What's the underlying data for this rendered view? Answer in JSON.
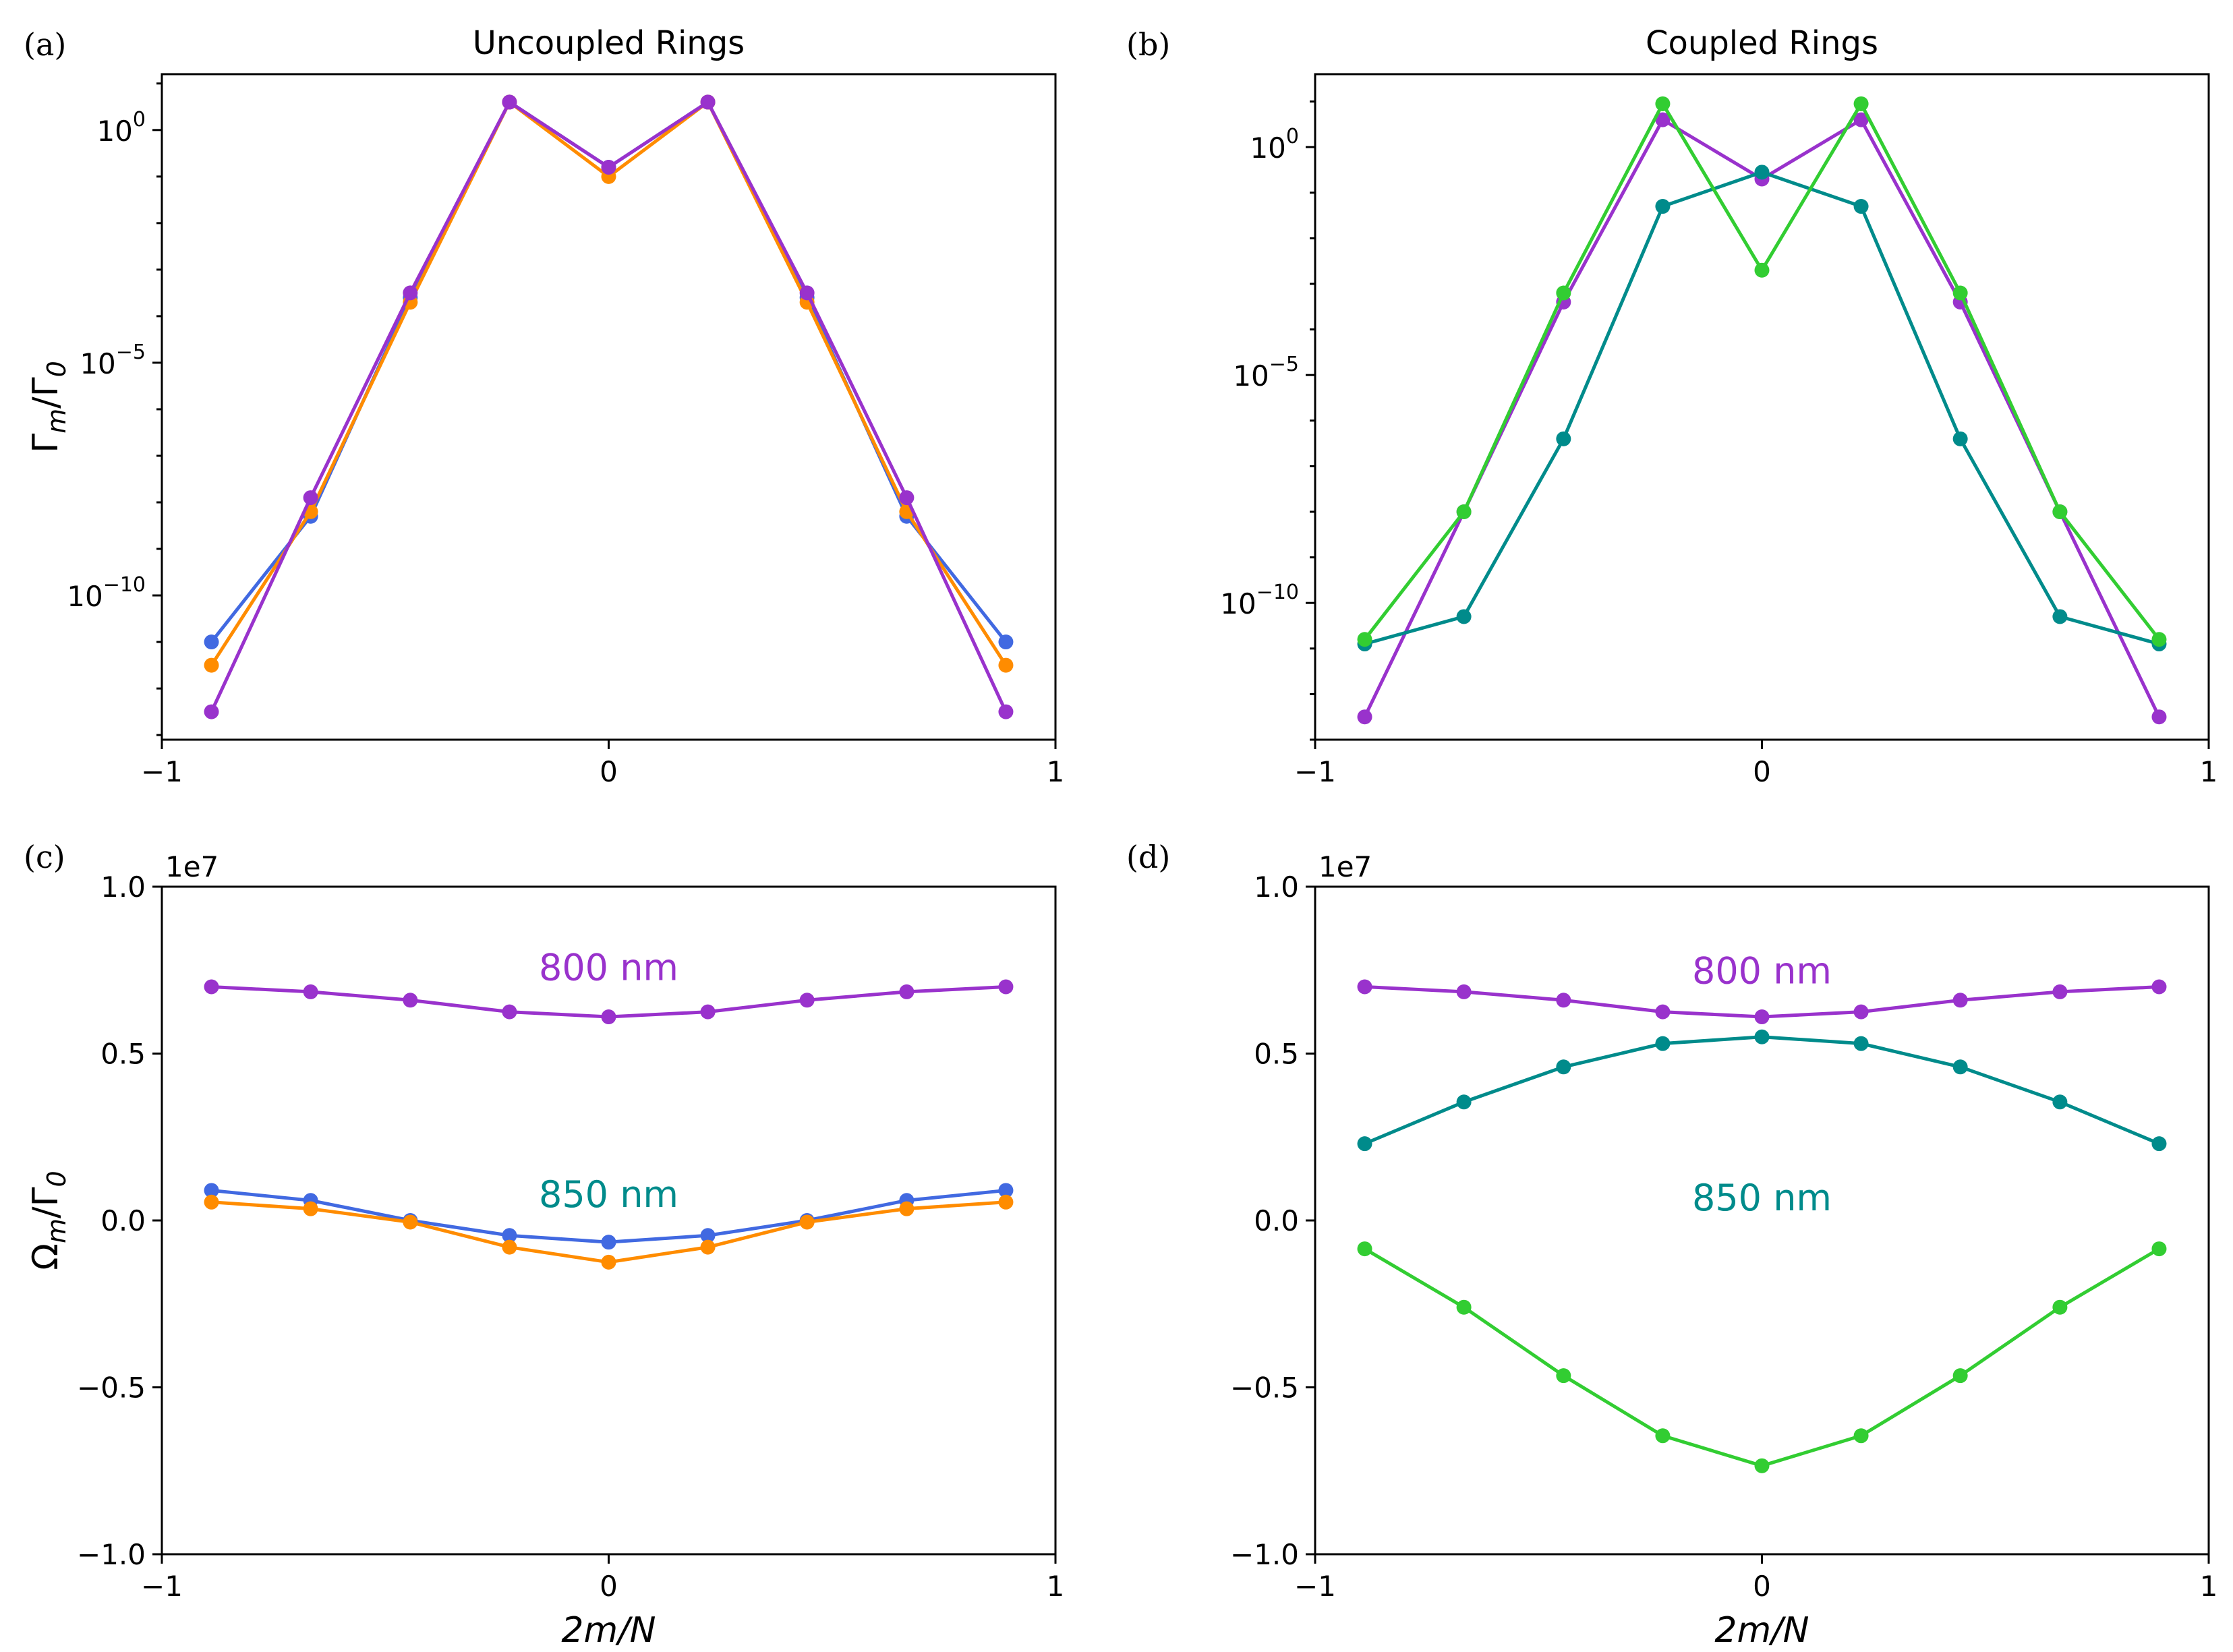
{
  "ylabel_top": "Γm/Γ0",
  "ylabel_bottom": "Ωm/Γ0",
  "xlabel": "2m/N",
  "colors": {
    "blue": "#4169e1",
    "orange": "#ff8c00",
    "purple": "#9932cc",
    "teal": "#008b8b",
    "green": "#32cd32"
  },
  "chart_data": [
    {
      "id": "a",
      "type": "line",
      "letter": "(a)",
      "title": "Uncoupled Rings",
      "scale": "log",
      "xlabel": "",
      "ylabel": "Γm/Γ0",
      "xlim": [
        -1,
        1
      ],
      "ylim_log10": [
        -13.1,
        1.2
      ],
      "xticks": [
        -1,
        0,
        1
      ],
      "xtick_labels": [
        "−1",
        "0",
        "1"
      ],
      "yticks_log10": [
        0,
        -5,
        -10
      ],
      "ytick_base": "10",
      "ytick_exps": [
        "0",
        "−5",
        "−10"
      ],
      "x": [
        -0.889,
        -0.667,
        -0.444,
        -0.222,
        0,
        0.222,
        0.444,
        0.667,
        0.889
      ],
      "series": [
        {
          "name": "blue",
          "color": "#4169e1",
          "log10_values": [
            -11.0,
            -8.3,
            -3.6,
            0.6,
            -0.8,
            0.6,
            -3.6,
            -8.3,
            -11.0
          ]
        },
        {
          "name": "orange",
          "color": "#ff8c00",
          "log10_values": [
            -11.5,
            -8.2,
            -3.7,
            0.6,
            -1.0,
            0.6,
            -3.7,
            -8.2,
            -11.5
          ]
        },
        {
          "name": "purple",
          "color": "#9932cc",
          "log10_values": [
            -12.5,
            -7.9,
            -3.5,
            0.6,
            -0.8,
            0.6,
            -3.5,
            -7.9,
            -12.5
          ]
        }
      ]
    },
    {
      "id": "b",
      "type": "line",
      "letter": "(b)",
      "title": "Coupled Rings",
      "scale": "log",
      "xlabel": "",
      "ylabel": "",
      "xlim": [
        -1,
        1
      ],
      "ylim_log10": [
        -13.0,
        1.6
      ],
      "xticks": [
        -1,
        0,
        1
      ],
      "xtick_labels": [
        "−1",
        "0",
        "1"
      ],
      "yticks_log10": [
        0,
        -5,
        -10
      ],
      "ytick_base": "10",
      "ytick_exps": [
        "0",
        "−5",
        "−10"
      ],
      "x": [
        -0.889,
        -0.667,
        -0.444,
        -0.222,
        0,
        0.222,
        0.444,
        0.667,
        0.889
      ],
      "series": [
        {
          "name": "purple",
          "color": "#9932cc",
          "log10_values": [
            -12.5,
            -8.0,
            -3.4,
            0.6,
            -0.7,
            0.6,
            -3.4,
            -8.0,
            -12.5
          ]
        },
        {
          "name": "teal",
          "color": "#008b8b",
          "log10_values": [
            -10.9,
            -10.3,
            -6.4,
            -1.3,
            -0.55,
            -1.3,
            -6.4,
            -10.3,
            -10.9
          ]
        },
        {
          "name": "green",
          "color": "#32cd32",
          "log10_values": [
            -10.8,
            -8.0,
            -3.2,
            0.95,
            -2.7,
            0.95,
            -3.2,
            -8.0,
            -10.8
          ]
        }
      ]
    },
    {
      "id": "c",
      "type": "line",
      "letter": "(c)",
      "title": "",
      "scale": "linear",
      "xlabel": "2m/N",
      "ylabel": "Ωm/Γ0",
      "offset_text": "1e7",
      "xlim": [
        -1,
        1
      ],
      "ylim": [
        -1.0,
        1.0
      ],
      "xticks": [
        -1,
        0,
        1
      ],
      "xtick_labels": [
        "−1",
        "0",
        "1"
      ],
      "yticks": [
        1.0,
        0.5,
        0.0,
        -0.5,
        -1.0
      ],
      "ytick_labels": [
        "1.0",
        "0.5",
        "0.0",
        "−0.5",
        "−1.0"
      ],
      "x": [
        -0.889,
        -0.667,
        -0.444,
        -0.222,
        0,
        0.222,
        0.444,
        0.667,
        0.889
      ],
      "series": [
        {
          "name": "purple",
          "color": "#9932cc",
          "values": [
            0.7,
            0.685,
            0.66,
            0.625,
            0.61,
            0.625,
            0.66,
            0.685,
            0.7
          ]
        },
        {
          "name": "blue",
          "color": "#4169e1",
          "values": [
            0.09,
            0.06,
            0.0,
            -0.045,
            -0.065,
            -0.045,
            0.0,
            0.06,
            0.09
          ]
        },
        {
          "name": "orange",
          "color": "#ff8c00",
          "values": [
            0.055,
            0.035,
            -0.005,
            -0.08,
            -0.125,
            -0.08,
            -0.005,
            0.035,
            0.055
          ]
        }
      ],
      "annotations": [
        {
          "text": "800 nm",
          "x": 0.0,
          "y": 0.72,
          "color": "#9932cc"
        },
        {
          "text": "850 nm",
          "x": 0.0,
          "y": 0.04,
          "color": "#008b8b"
        }
      ]
    },
    {
      "id": "d",
      "type": "line",
      "letter": "(d)",
      "title": "",
      "scale": "linear",
      "xlabel": "2m/N",
      "ylabel": "",
      "offset_text": "1e7",
      "xlim": [
        -1,
        1
      ],
      "ylim": [
        -1.0,
        1.0
      ],
      "xticks": [
        -1,
        0,
        1
      ],
      "xtick_labels": [
        "−1",
        "0",
        "1"
      ],
      "yticks": [
        1.0,
        0.5,
        0.0,
        -0.5,
        -1.0
      ],
      "ytick_labels": [
        "1.0",
        "0.5",
        "0.0",
        "−0.5",
        "−1.0"
      ],
      "x": [
        -0.889,
        -0.667,
        -0.444,
        -0.222,
        0,
        0.222,
        0.444,
        0.667,
        0.889
      ],
      "series": [
        {
          "name": "purple",
          "color": "#9932cc",
          "values": [
            0.7,
            0.685,
            0.66,
            0.625,
            0.61,
            0.625,
            0.66,
            0.685,
            0.7
          ]
        },
        {
          "name": "teal",
          "color": "#008b8b",
          "values": [
            0.23,
            0.355,
            0.46,
            0.53,
            0.55,
            0.53,
            0.46,
            0.355,
            0.23
          ]
        },
        {
          "name": "green",
          "color": "#32cd32",
          "values": [
            -0.085,
            -0.26,
            -0.465,
            -0.645,
            -0.735,
            -0.645,
            -0.465,
            -0.26,
            -0.085
          ]
        }
      ],
      "annotations": [
        {
          "text": "800 nm",
          "x": 0.0,
          "y": 0.71,
          "color": "#9932cc"
        },
        {
          "text": "850 nm",
          "x": 0.0,
          "y": 0.03,
          "color": "#008b8b"
        }
      ]
    }
  ]
}
